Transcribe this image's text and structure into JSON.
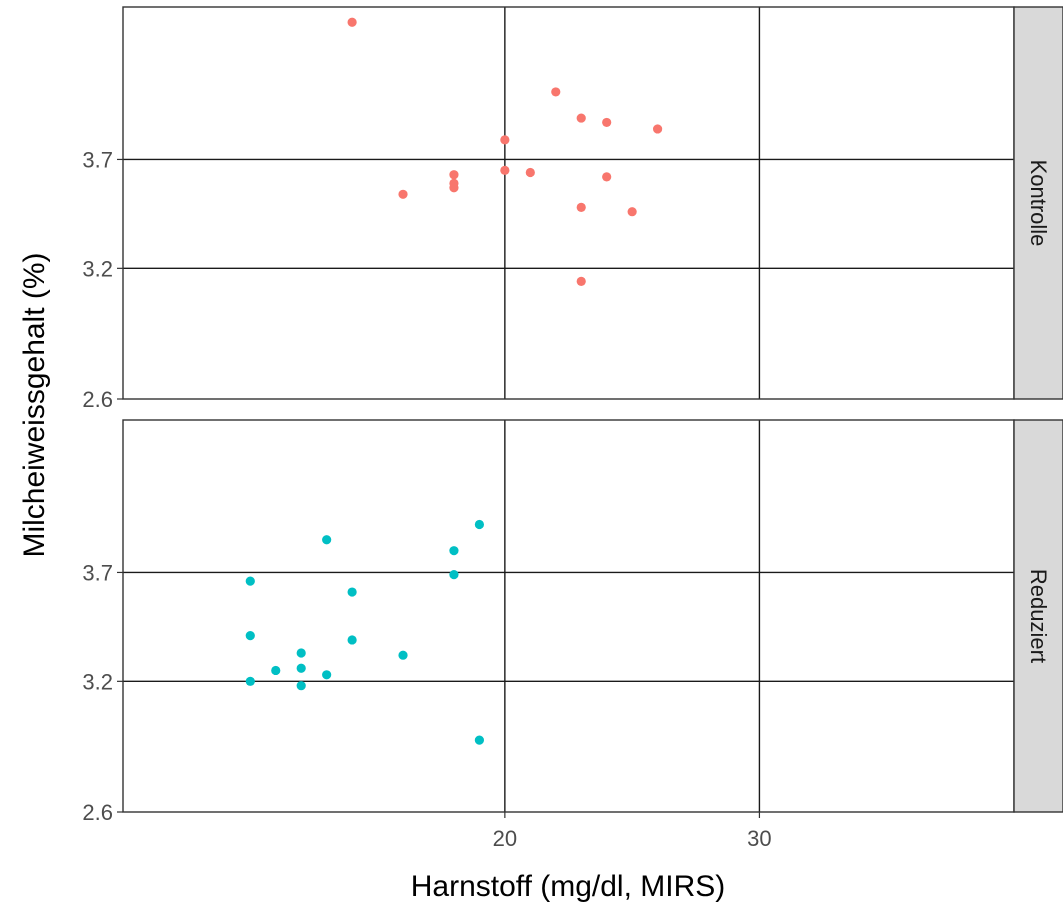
{
  "chart_data": {
    "type": "scatter",
    "xlabel": "Harnstoff (mg/dl, MIRS)",
    "ylabel": "Milcheiweissgehalt (%)",
    "xlim": [
      5,
      40
    ],
    "ylim": [
      2.6,
      4.4
    ],
    "x_ticks": [
      20,
      30
    ],
    "x_tick_labels": [
      "20",
      "30"
    ],
    "y_ticks": [
      2.6,
      3.2,
      3.7
    ],
    "y_tick_labels": [
      "2.6",
      "3.2",
      "3.7"
    ],
    "grid": true,
    "legend": "none",
    "facets": [
      {
        "label": "Kontrolle",
        "color": "#F8766D",
        "points": [
          {
            "x": 14,
            "y": 4.33
          },
          {
            "x": 22,
            "y": 4.01
          },
          {
            "x": 23,
            "y": 3.89
          },
          {
            "x": 24,
            "y": 3.87
          },
          {
            "x": 26,
            "y": 3.84
          },
          {
            "x": 20,
            "y": 3.79
          },
          {
            "x": 20,
            "y": 3.65
          },
          {
            "x": 21,
            "y": 3.64
          },
          {
            "x": 18,
            "y": 3.63
          },
          {
            "x": 24,
            "y": 3.62
          },
          {
            "x": 18,
            "y": 3.59
          },
          {
            "x": 18,
            "y": 3.57
          },
          {
            "x": 16,
            "y": 3.54
          },
          {
            "x": 23,
            "y": 3.48
          },
          {
            "x": 25,
            "y": 3.46
          },
          {
            "x": 23,
            "y": 3.14
          }
        ]
      },
      {
        "label": "Reduziert",
        "color": "#00BFC4",
        "points": [
          {
            "x": 19,
            "y": 3.92
          },
          {
            "x": 13,
            "y": 3.85
          },
          {
            "x": 18,
            "y": 3.8
          },
          {
            "x": 18,
            "y": 3.69
          },
          {
            "x": 10,
            "y": 3.66
          },
          {
            "x": 14,
            "y": 3.61
          },
          {
            "x": 10,
            "y": 3.41
          },
          {
            "x": 14,
            "y": 3.39
          },
          {
            "x": 12,
            "y": 3.33
          },
          {
            "x": 16,
            "y": 3.32
          },
          {
            "x": 12,
            "y": 3.26
          },
          {
            "x": 11,
            "y": 3.25
          },
          {
            "x": 13,
            "y": 3.23
          },
          {
            "x": 10,
            "y": 3.2
          },
          {
            "x": 12,
            "y": 3.18
          },
          {
            "x": 19,
            "y": 2.93
          }
        ]
      }
    ]
  }
}
